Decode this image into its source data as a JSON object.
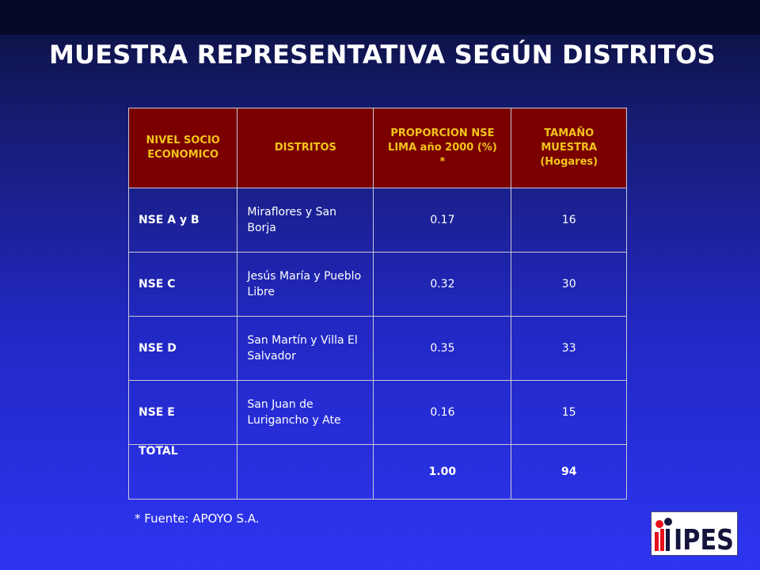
{
  "title": "MUESTRA REPRESENTATIVA SEGÚN DISTRITOS",
  "table": {
    "headers": {
      "level": "NIVEL SOCIO ECONOMICO",
      "district": "DISTRITOS",
      "proportion": "PROPORCION NSE LIMA año 2000 (%) *",
      "sample": "TAMAÑO MUESTRA (Hogares)"
    },
    "rows": [
      {
        "level": "NSE A y B",
        "district": "Miraflores y San Borja",
        "proportion": "0.17",
        "sample": "16"
      },
      {
        "level": "NSE C",
        "district": "Jesús María y Pueblo Libre",
        "proportion": "0.32",
        "sample": "30"
      },
      {
        "level": "NSE D",
        "district": "San Martín y Villa El Salvador",
        "proportion": "0.35",
        "sample": "33"
      },
      {
        "level": "NSE E",
        "district": "San Juan de Lurigancho y Ate",
        "proportion": "0.16",
        "sample": "15"
      }
    ],
    "total": {
      "label": "TOTAL",
      "district": "",
      "proportion": "1.00",
      "sample": "94"
    }
  },
  "footnote": "* Fuente: APOYO S.A.",
  "logo": {
    "text": "IPES"
  },
  "colors": {
    "header_bg": "#7a0000",
    "header_text": "#f2c41a",
    "background_top": "#0c0f3a",
    "background_bottom": "#2d35f2",
    "logo_red": "#e8101a",
    "logo_navy": "#14143c"
  }
}
